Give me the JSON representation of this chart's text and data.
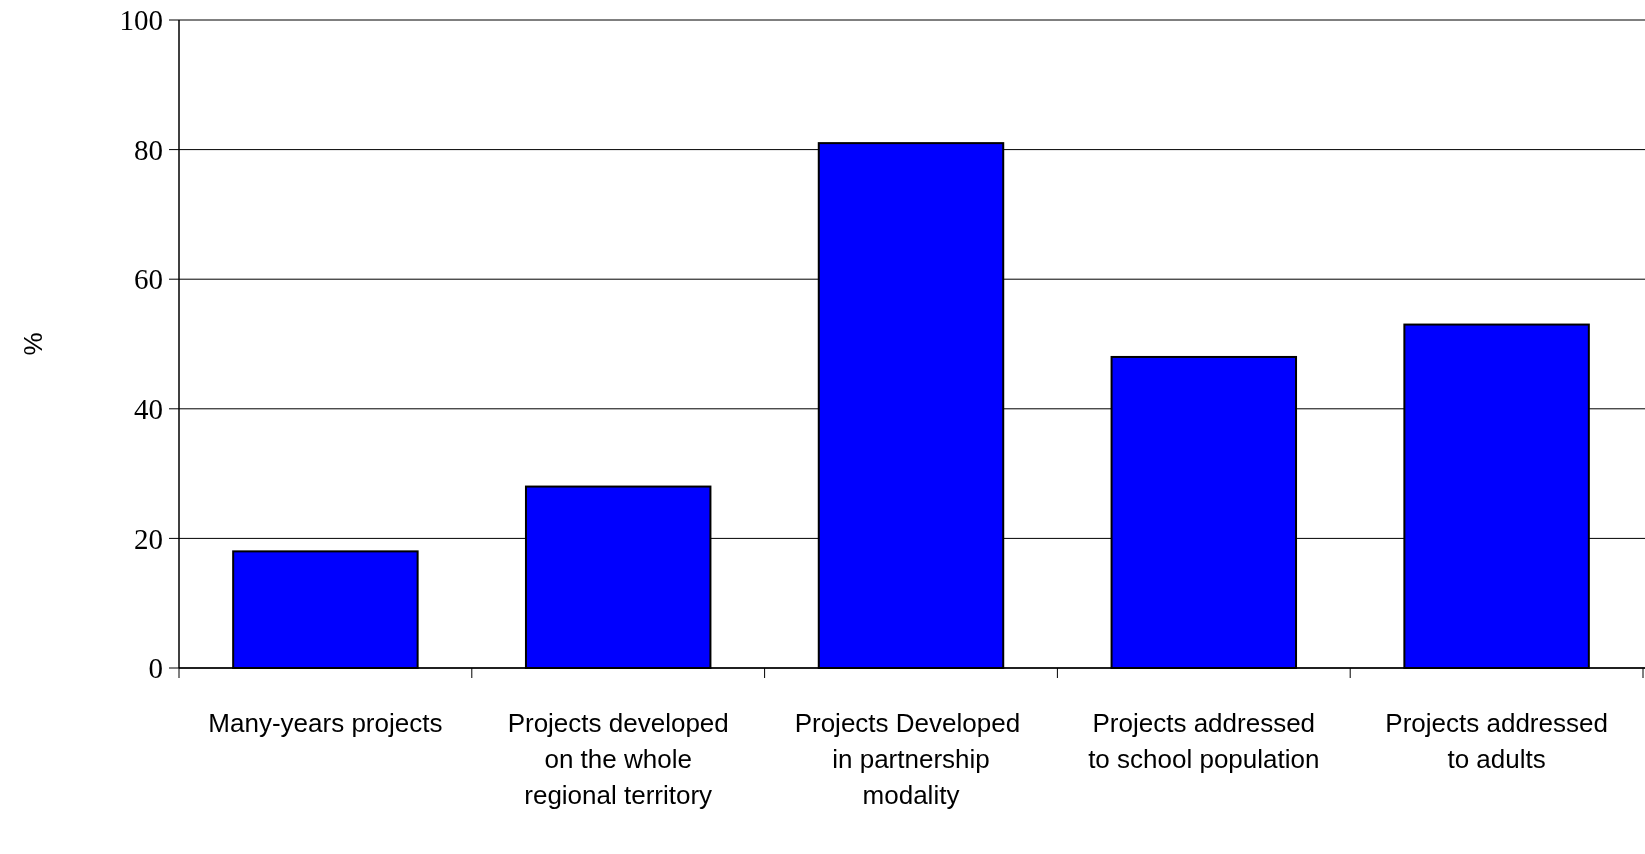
{
  "chart_data": {
    "type": "bar",
    "ylabel": "%",
    "categories": [
      "Many-years projects",
      "Projects developed on the whole regional territory",
      "Projects Developed  in partnership modality",
      "Projects addressed to school population",
      "Projects addressed to adults"
    ],
    "values": [
      18,
      28,
      81,
      48,
      53
    ],
    "color": "#0000ff",
    "ylim": [
      0,
      100
    ],
    "yticks": [
      0,
      20,
      40,
      60,
      80,
      100
    ],
    "grid": "y"
  }
}
